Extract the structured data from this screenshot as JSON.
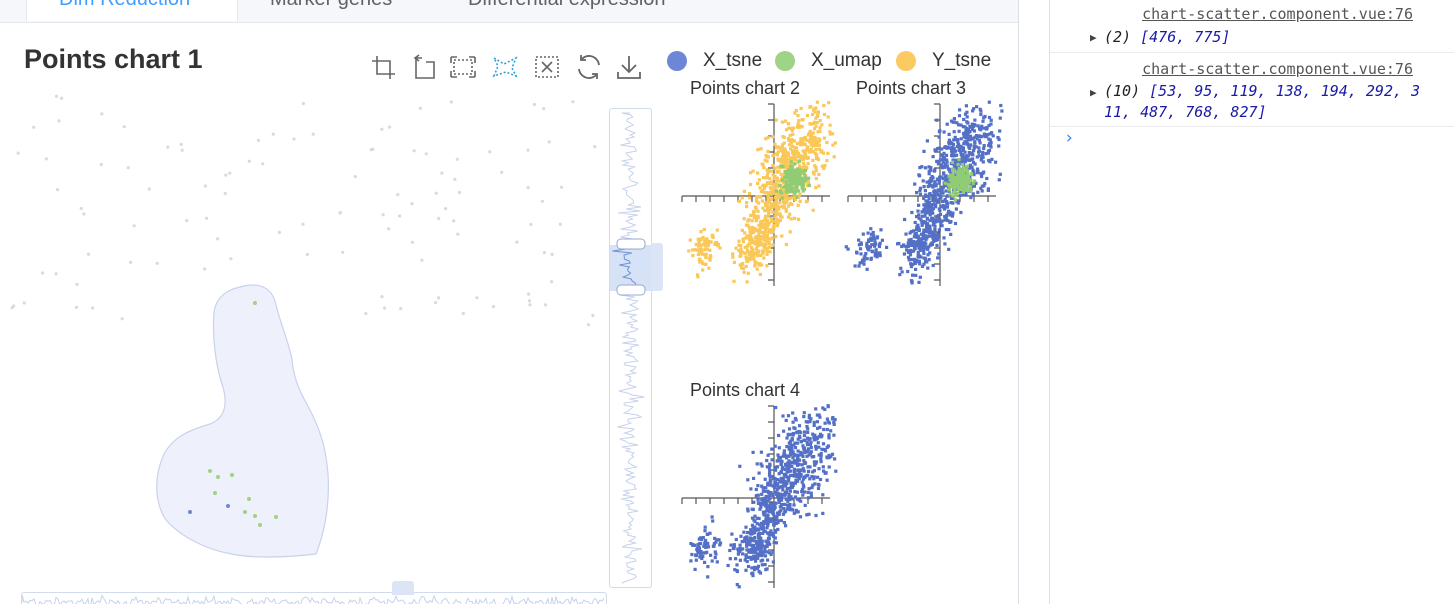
{
  "tabs": [
    {
      "label": "Dim Reduction",
      "active": true
    },
    {
      "label": "Marker genes",
      "active": false
    },
    {
      "label": "Differential expression",
      "active": false
    }
  ],
  "chart1": {
    "title": "Points chart 1",
    "toolbox_icons": [
      "rect-select-icon",
      "polygon-select-icon",
      "lasso-icon",
      "keep-selection-icon",
      "clear-selection-icon",
      "restore-icon",
      "save-image-icon"
    ]
  },
  "legend": [
    {
      "name": "X_tsne",
      "color": "#6e86d6"
    },
    {
      "name": "X_umap",
      "color": "#9fd385"
    },
    {
      "name": "Y_tsne",
      "color": "#fcca63"
    }
  ],
  "subcharts": [
    {
      "title": "Points chart 2"
    },
    {
      "title": "Points chart 3"
    },
    {
      "title": "Points chart 4"
    }
  ],
  "chart_data": {
    "type": "scatter",
    "series": [
      {
        "name": "X_tsne",
        "color": "#5470c6"
      },
      {
        "name": "X_umap",
        "color": "#91cc75"
      },
      {
        "name": "Y_tsne",
        "color": "#fac858"
      }
    ]
  },
  "console": {
    "logs": [
      {
        "source": "chart-scatter.component.vue:76",
        "count": "(2)",
        "values": "[476, 775]"
      },
      {
        "source": "chart-scatter.component.vue:76",
        "count": "(10)",
        "values": "[53, 95, 119, 138, 194, 292, 311, 487, 768, 827]"
      }
    ],
    "prompt": "›"
  }
}
